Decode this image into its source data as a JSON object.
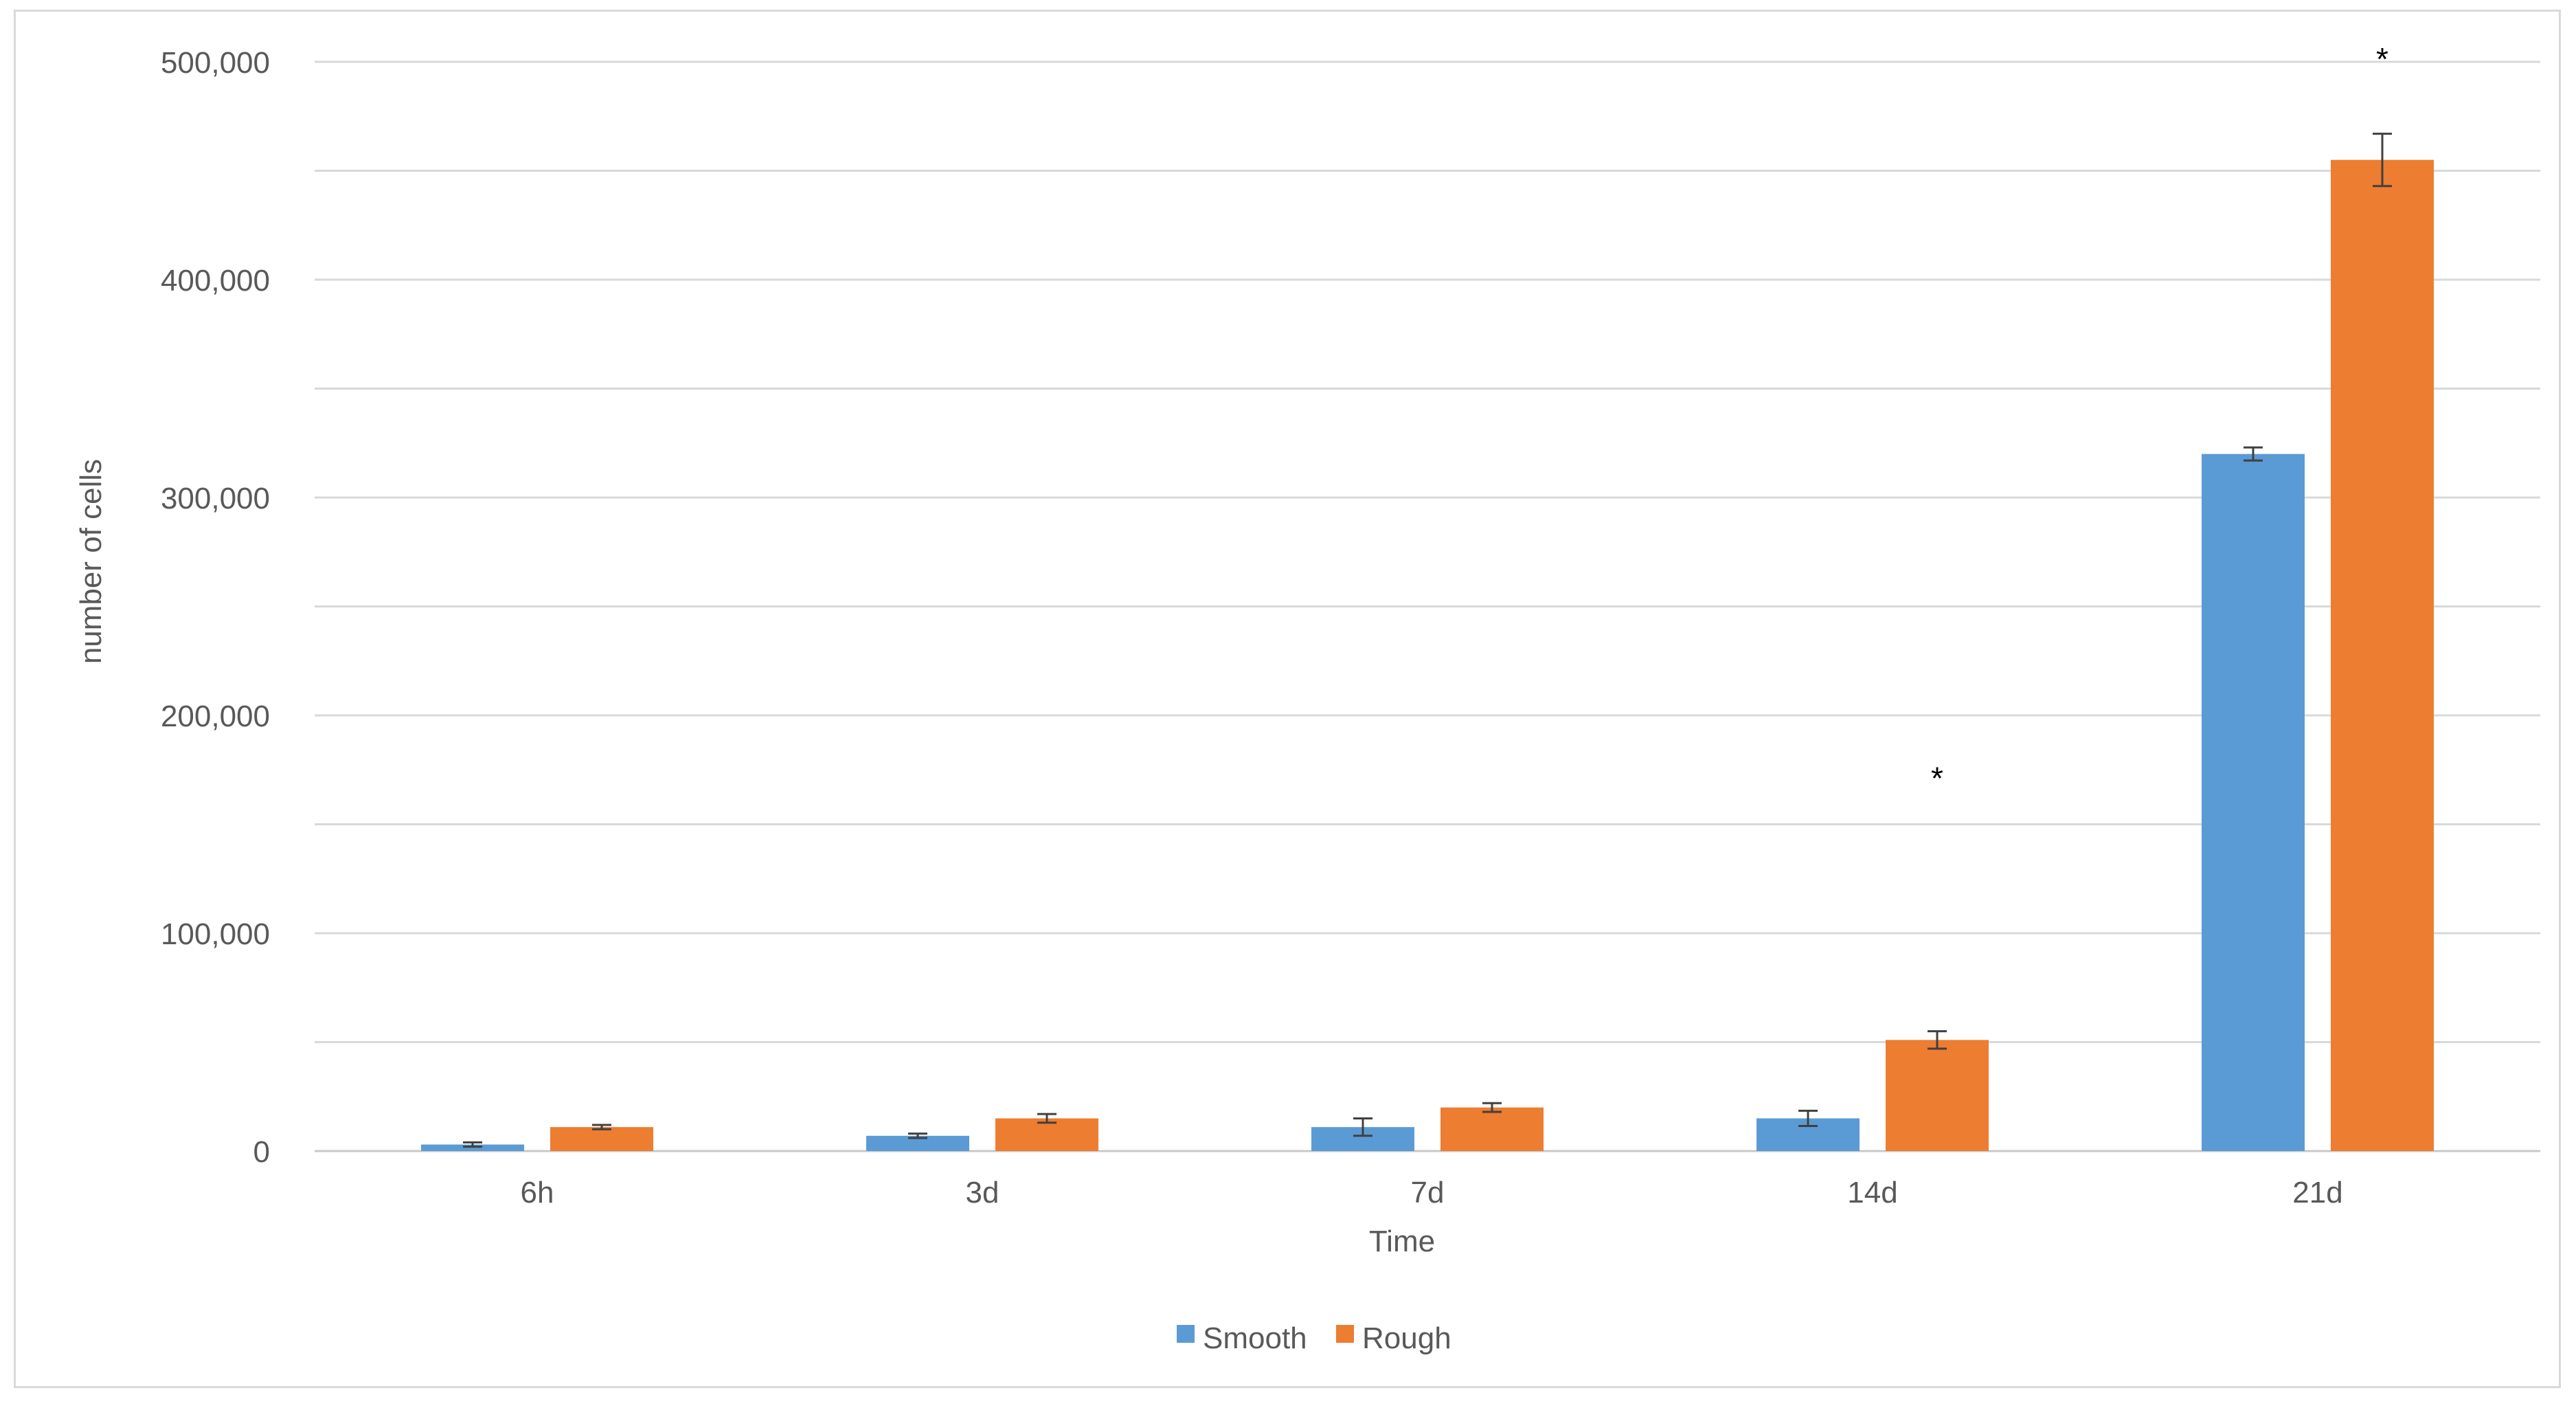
{
  "chart_data": {
    "type": "bar",
    "title": "",
    "xlabel": "Time",
    "ylabel": "number of cells",
    "categories": [
      "6h",
      "3d",
      "7d",
      "14d",
      "21d"
    ],
    "series": [
      {
        "name": "Smooth",
        "color": "#5b9bd5",
        "values": [
          3000,
          7000,
          11000,
          15000,
          320000
        ],
        "error": [
          1000,
          1000,
          4000,
          3500,
          3000
        ]
      },
      {
        "name": "Rough",
        "color": "#ed7d31",
        "values": [
          11000,
          15000,
          20000,
          51000,
          455000
        ],
        "error": [
          1000,
          2000,
          2000,
          4000,
          12000
        ]
      }
    ],
    "ylim": [
      0,
      500000
    ],
    "yticks": [
      0,
      100000,
      200000,
      300000,
      400000,
      500000
    ],
    "ytick_labels": [
      "0",
      "100,000",
      "200,000",
      "300,000",
      "400,000",
      "500,000"
    ],
    "grid": true,
    "legend_position": "bottom",
    "annotations": [
      {
        "text": "*",
        "category": "14d",
        "series": "Rough",
        "y": 175000
      },
      {
        "text": "*",
        "category": "21d",
        "series": "Rough",
        "y": 505000
      }
    ]
  }
}
